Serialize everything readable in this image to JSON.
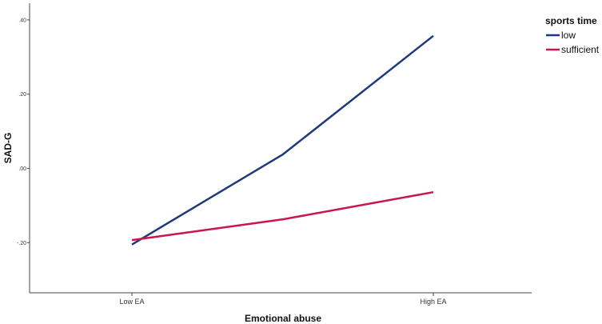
{
  "chart_data": {
    "type": "line",
    "title": "",
    "xlabel": "Emotional abuse",
    "ylabel": "SAD-G",
    "categories": [
      "Low EA",
      "",
      "High EA"
    ],
    "x_tick_labels": [
      "Low EA",
      "High EA"
    ],
    "y_ticks": [
      -0.2,
      0.0,
      0.2,
      0.4
    ],
    "y_tick_labels": [
      "-.20",
      ".00",
      ".20",
      ".40"
    ],
    "ylim": [
      -0.335,
      0.445
    ],
    "grid": false,
    "legend": {
      "title": "sports time",
      "position": "top-right"
    },
    "series": [
      {
        "name": "low",
        "color": "#1f3a7a",
        "values": [
          -0.205,
          0.038,
          0.357
        ]
      },
      {
        "name": "sufficient",
        "color": "#c8174a",
        "values": [
          -0.193,
          -0.137,
          -0.064
        ]
      }
    ]
  }
}
